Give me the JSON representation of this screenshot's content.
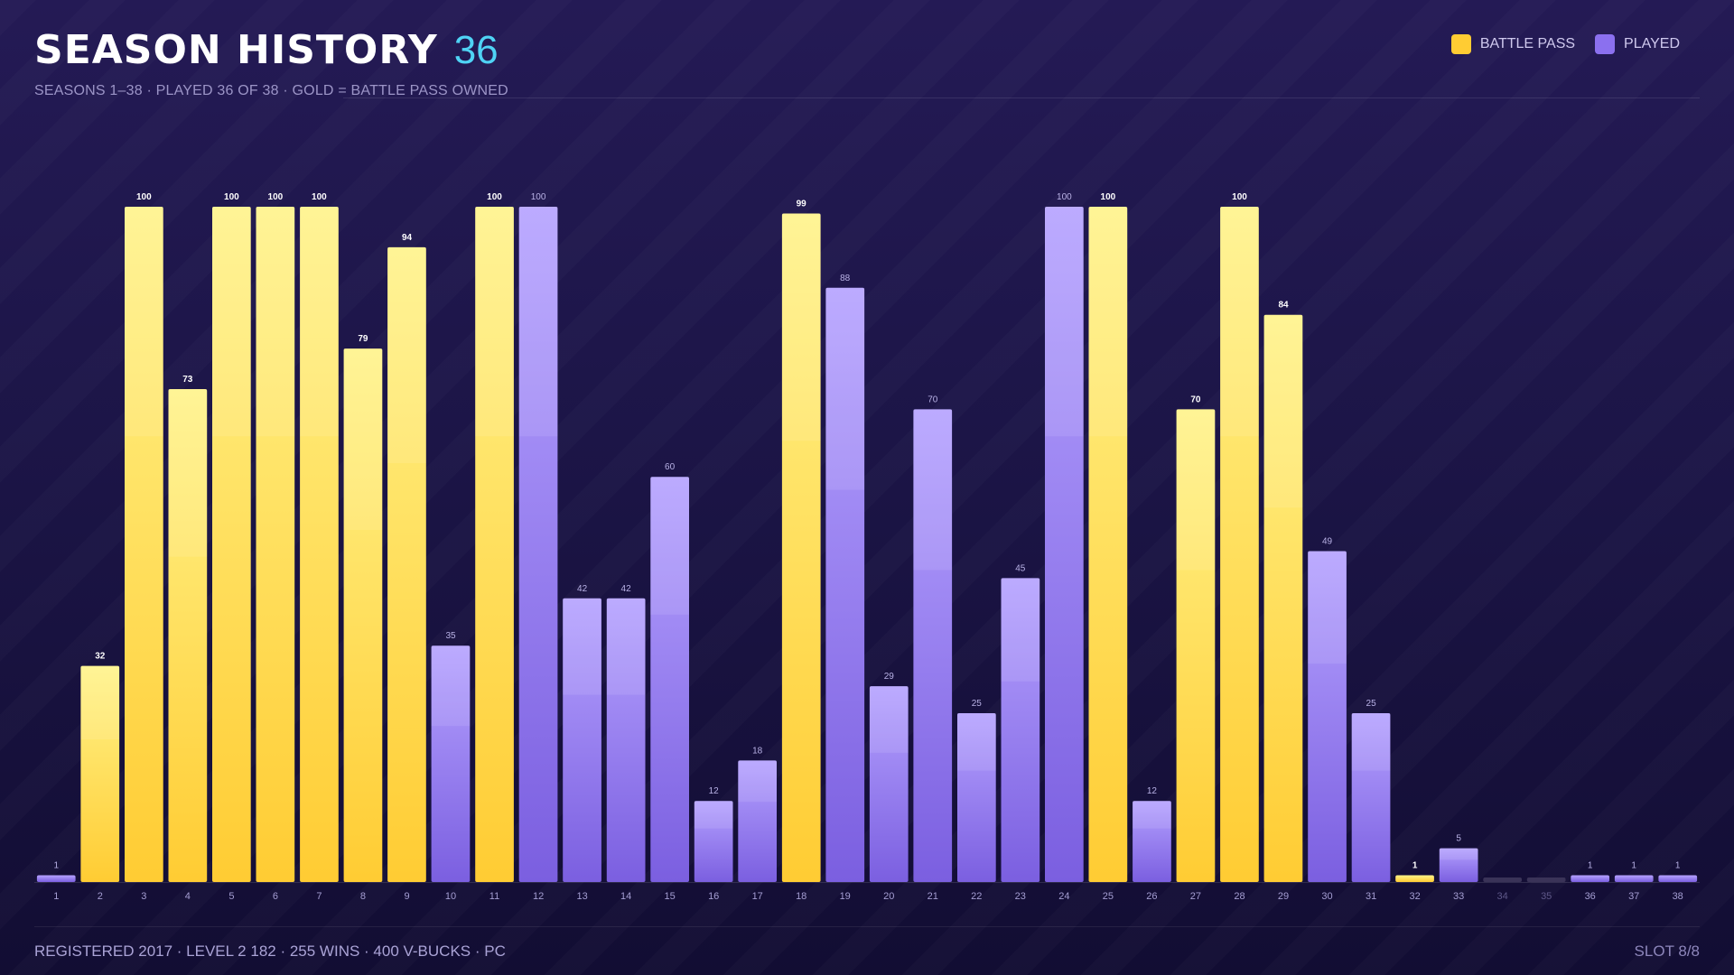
{
  "header": {
    "title": "SEASON HISTORY",
    "count": "36",
    "subtitle": "SEASONS 1–38 · PLAYED 36 OF 38 · GOLD = BATTLE PASS OWNED"
  },
  "legend": {
    "battle_pass": "BATTLE PASS",
    "played": "PLAYED"
  },
  "colors": {
    "gold_top": "#fff38a",
    "gold_bottom": "#ffcc33",
    "purple_top": "#b5a2ff",
    "purple_bottom": "#7b5fe0",
    "count_accent": "#4fd3f5",
    "unplayed": "#3a3358"
  },
  "footer": {
    "left": "REGISTERED 2017 · LEVEL 2 182 · 255 WINS · 400 V-BUCKS · PC",
    "right": "SLOT 8/8"
  },
  "chart_data": {
    "type": "bar",
    "title": "SEASON HISTORY",
    "xlabel": "",
    "ylabel": "",
    "ylim": [
      0,
      100
    ],
    "grid": false,
    "legend_position": "top-right",
    "categories": [
      "1",
      "2",
      "3",
      "4",
      "5",
      "6",
      "7",
      "8",
      "9",
      "10",
      "11",
      "12",
      "13",
      "14",
      "15",
      "16",
      "17",
      "18",
      "19",
      "20",
      "21",
      "22",
      "23",
      "24",
      "25",
      "26",
      "27",
      "28",
      "29",
      "30",
      "31",
      "32",
      "33",
      "34",
      "35",
      "36",
      "37",
      "38"
    ],
    "values": [
      1,
      32,
      100,
      73,
      100,
      100,
      100,
      79,
      94,
      35,
      100,
      100,
      42,
      42,
      60,
      12,
      18,
      99,
      88,
      29,
      70,
      25,
      45,
      100,
      100,
      12,
      70,
      100,
      84,
      49,
      25,
      1,
      5,
      0,
      0,
      1,
      1,
      1
    ],
    "battle_pass": [
      false,
      true,
      true,
      true,
      true,
      true,
      true,
      true,
      true,
      false,
      true,
      false,
      false,
      false,
      false,
      false,
      false,
      true,
      false,
      false,
      false,
      false,
      false,
      false,
      true,
      false,
      true,
      true,
      true,
      false,
      false,
      true,
      false,
      false,
      false,
      false,
      false,
      false
    ],
    "played": [
      true,
      true,
      true,
      true,
      true,
      true,
      true,
      true,
      true,
      true,
      true,
      true,
      true,
      true,
      true,
      true,
      true,
      true,
      true,
      true,
      true,
      true,
      true,
      true,
      true,
      true,
      true,
      true,
      true,
      true,
      true,
      true,
      true,
      false,
      false,
      true,
      true,
      true
    ],
    "labels": [
      "1",
      "32",
      "100",
      "73",
      "100",
      "100",
      "100",
      "79",
      "94",
      "35",
      "100",
      "100",
      "42",
      "42",
      "60",
      "12",
      "18",
      "99",
      "88",
      "29",
      "70",
      "25",
      "45",
      "100",
      "100",
      "12",
      "70",
      "100",
      "84",
      "49",
      "25",
      "1",
      "5",
      "",
      "",
      "1",
      "1",
      "1"
    ]
  }
}
